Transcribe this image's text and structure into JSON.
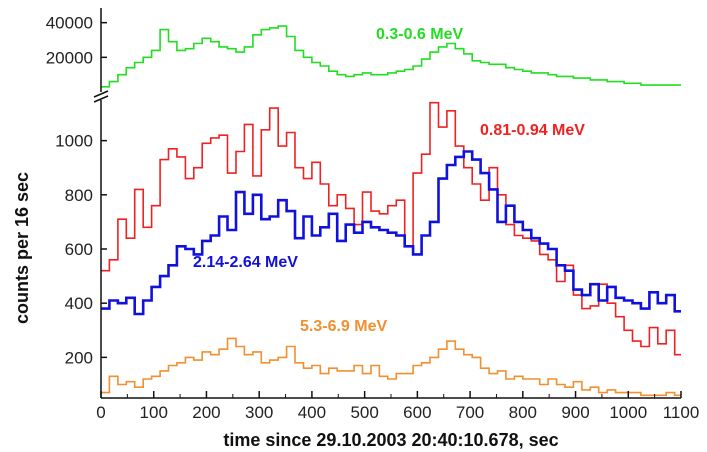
{
  "chart_data": {
    "type": "line",
    "xlabel": "time since 29.10.2003 20:40:10.678, sec",
    "ylabel": "counts per 16 sec",
    "xlim": [
      0,
      1100
    ],
    "x_ticks": [
      "0",
      "100",
      "200",
      "300",
      "400",
      "500",
      "600",
      "700",
      "800",
      "900",
      "1000",
      "1100"
    ],
    "grid": false,
    "axes": [
      {
        "name": "upper",
        "ylim": [
          0,
          45000
        ],
        "y_ticks": [
          "20000",
          "40000"
        ],
        "series": [
          {
            "name": "0.3-0.6 MeV",
            "color": "#22dd22",
            "x": [
              0,
              16,
              32,
              48,
              64,
              80,
              96,
              112,
              128,
              144,
              160,
              176,
              192,
              208,
              224,
              240,
              256,
              272,
              288,
              304,
              320,
              336,
              352,
              368,
              384,
              400,
              416,
              432,
              448,
              464,
              480,
              496,
              512,
              528,
              544,
              560,
              576,
              592,
              608,
              624,
              640,
              656,
              672,
              688,
              704,
              720,
              736,
              752,
              768,
              784,
              800,
              816,
              832,
              848,
              864,
              880,
              896,
              912,
              928,
              944,
              960,
              976,
              992,
              1008,
              1024,
              1040,
              1056,
              1072,
              1088
            ],
            "values": [
              3000,
              6000,
              10000,
              14000,
              17000,
              20000,
              24000,
              36000,
              29000,
              24000,
              25000,
              28000,
              31000,
              29000,
              26000,
              25000,
              23000,
              26000,
              33000,
              36000,
              37000,
              38000,
              32000,
              24000,
              20000,
              17000,
              15000,
              12000,
              10000,
              9000,
              10000,
              11000,
              10000,
              10000,
              11000,
              12000,
              13000,
              15000,
              19000,
              23000,
              26000,
              28000,
              25000,
              22000,
              18000,
              17000,
              16000,
              16000,
              14000,
              13000,
              12000,
              11000,
              11000,
              10000,
              9000,
              9000,
              8000,
              8000,
              7000,
              7000,
              6000,
              6000,
              5000,
              5000,
              4000,
              4000,
              4000,
              4000,
              4000
            ]
          }
        ]
      },
      {
        "name": "lower",
        "ylim": [
          50,
          1150
        ],
        "y_ticks": [
          "200",
          "400",
          "600",
          "800",
          "1000"
        ],
        "series": [
          {
            "name": "0.81-0.94 MeV",
            "color": "#ee2222",
            "x": [
              0,
              16,
              32,
              48,
              64,
              80,
              96,
              112,
              128,
              144,
              160,
              176,
              192,
              208,
              224,
              240,
              256,
              272,
              288,
              304,
              320,
              336,
              352,
              368,
              384,
              400,
              416,
              432,
              448,
              464,
              480,
              496,
              512,
              528,
              544,
              560,
              576,
              592,
              608,
              624,
              640,
              656,
              672,
              688,
              704,
              720,
              736,
              752,
              768,
              784,
              800,
              816,
              832,
              848,
              864,
              880,
              896,
              912,
              928,
              944,
              960,
              976,
              992,
              1008,
              1024,
              1040,
              1056,
              1072,
              1088
            ],
            "values": [
              520,
              560,
              710,
              640,
              820,
              680,
              760,
              930,
              970,
              940,
              860,
              900,
              990,
              1010,
              1020,
              880,
              960,
              1060,
              870,
              1040,
              1120,
              980,
              1030,
              900,
              860,
              920,
              840,
              760,
              800,
              750,
              690,
              810,
              740,
              730,
              760,
              780,
              610,
              880,
              950,
              1140,
              1050,
              1110,
              980,
              900,
              840,
              780,
              900,
              800,
              690,
              650,
              640,
              630,
              580,
              560,
              480,
              540,
              430,
              380,
              390,
              470,
              400,
              350,
              300,
              260,
              240,
              310,
              250,
              300,
              210
            ]
          },
          {
            "name": "2.14-2.64 MeV",
            "color": "#1111dd",
            "x": [
              0,
              16,
              32,
              48,
              64,
              80,
              96,
              112,
              128,
              144,
              160,
              176,
              192,
              208,
              224,
              240,
              256,
              272,
              288,
              304,
              320,
              336,
              352,
              368,
              384,
              400,
              416,
              432,
              448,
              464,
              480,
              496,
              512,
              528,
              544,
              560,
              576,
              592,
              608,
              624,
              640,
              656,
              672,
              688,
              704,
              720,
              736,
              752,
              768,
              784,
              800,
              816,
              832,
              848,
              864,
              880,
              896,
              912,
              928,
              944,
              960,
              976,
              992,
              1008,
              1024,
              1040,
              1056,
              1072,
              1088
            ],
            "values": [
              380,
              410,
              400,
              420,
              360,
              410,
              460,
              500,
              540,
              610,
              600,
              580,
              630,
              650,
              720,
              670,
              810,
              730,
              800,
              710,
              720,
              780,
              740,
              640,
              720,
              650,
              680,
              730,
              630,
              690,
              660,
              700,
              680,
              670,
              660,
              650,
              610,
              580,
              650,
              700,
              860,
              910,
              940,
              960,
              930,
              880,
              820,
              700,
              760,
              700,
              670,
              640,
              620,
              600,
              540,
              520,
              450,
              430,
              470,
              410,
              460,
              420,
              410,
              400,
              380,
              440,
              400,
              430,
              370
            ]
          },
          {
            "name": "5.3-6.9 MeV",
            "color": "#f09030",
            "x": [
              0,
              16,
              32,
              48,
              64,
              80,
              96,
              112,
              128,
              144,
              160,
              176,
              192,
              208,
              224,
              240,
              256,
              272,
              288,
              304,
              320,
              336,
              352,
              368,
              384,
              400,
              416,
              432,
              448,
              464,
              480,
              496,
              512,
              528,
              544,
              560,
              576,
              592,
              608,
              624,
              640,
              656,
              672,
              688,
              704,
              720,
              736,
              752,
              768,
              784,
              800,
              816,
              832,
              848,
              864,
              880,
              896,
              912,
              928,
              944,
              960,
              976,
              992,
              1008,
              1024,
              1040,
              1056,
              1072,
              1088
            ],
            "values": [
              70,
              130,
              100,
              110,
              90,
              120,
              130,
              150,
              170,
              180,
              200,
              190,
              220,
              210,
              230,
              270,
              240,
              210,
              220,
              180,
              190,
              200,
              240,
              180,
              160,
              170,
              140,
              160,
              150,
              150,
              170,
              140,
              170,
              130,
              120,
              140,
              140,
              170,
              180,
              200,
              230,
              260,
              230,
              210,
              200,
              160,
              140,
              150,
              120,
              130,
              120,
              120,
              100,
              120,
              100,
              90,
              110,
              80,
              90,
              70,
              80,
              70,
              70,
              70,
              60,
              60,
              60,
              70,
              60
            ]
          }
        ]
      }
    ]
  }
}
